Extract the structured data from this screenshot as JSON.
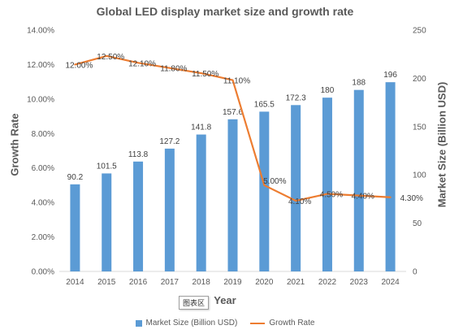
{
  "chart_data": {
    "type": "bar",
    "title": "Global LED display market size and growth rate",
    "xlabel": "Year",
    "ylabel": "Growth Rate",
    "y2label": "Market Size (Billion USD)",
    "categories": [
      "2014",
      "2015",
      "2016",
      "2017",
      "2018",
      "2019",
      "2020",
      "2021",
      "2022",
      "2023",
      "2024"
    ],
    "series": [
      {
        "name": "Market Size (Billion USD)",
        "type": "bar",
        "axis": "right",
        "color": "#5b9bd5",
        "values": [
          90.2,
          101.5,
          113.8,
          127.2,
          141.8,
          157.6,
          165.5,
          172.3,
          180,
          188,
          196
        ],
        "labels": [
          "90.2",
          "101.5",
          "113.8",
          "127.2",
          "141.8",
          "157.6",
          "165.5",
          "172.3",
          "180",
          "188",
          "196"
        ]
      },
      {
        "name": "Growth Rate",
        "type": "line",
        "axis": "left",
        "color": "#ed7d31",
        "values": [
          12.0,
          12.5,
          12.1,
          11.8,
          11.5,
          11.1,
          5.0,
          4.1,
          4.5,
          4.4,
          4.3
        ],
        "labels": [
          "12.00%",
          "12.50%",
          "12.10%",
          "11.80%",
          "11.50%",
          "11.10%",
          "5.00%",
          "4.10%",
          "4.50%",
          "4.40%",
          "4.30%"
        ]
      }
    ],
    "y_left": {
      "min": 0,
      "max": 14,
      "ticks": [
        0,
        2,
        4,
        6,
        8,
        10,
        12,
        14
      ],
      "tick_labels": [
        "0.00%",
        "2.00%",
        "4.00%",
        "6.00%",
        "8.00%",
        "10.00%",
        "12.00%",
        "14.00%"
      ]
    },
    "y_right": {
      "min": 0,
      "max": 250,
      "ticks": [
        0,
        50,
        100,
        150,
        200,
        250
      ],
      "tick_labels": [
        "0",
        "50",
        "100",
        "150",
        "200",
        "250"
      ]
    },
    "grid": false,
    "legend_position": "bottom"
  },
  "ui": {
    "area_tag": "图表区"
  }
}
